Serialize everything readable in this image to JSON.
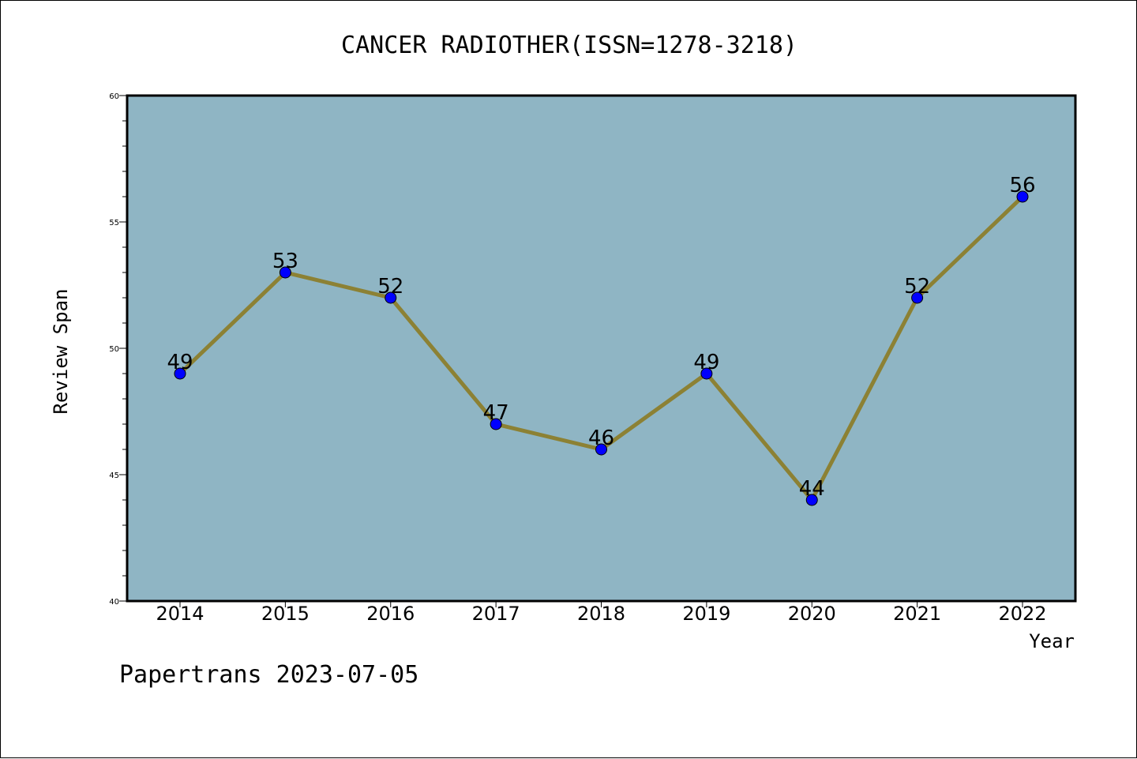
{
  "chart_data": {
    "type": "line",
    "title": "CANCER RADIOTHER(ISSN=1278-3218)",
    "xlabel": "Year",
    "ylabel": "Review Span",
    "categories": [
      "2014",
      "2015",
      "2016",
      "2017",
      "2018",
      "2019",
      "2020",
      "2021",
      "2022"
    ],
    "values": [
      49,
      53,
      52,
      47,
      46,
      49,
      44,
      52,
      56
    ],
    "data_labels": [
      "49",
      "53",
      "52",
      "47",
      "46",
      "49",
      "44",
      "52",
      "56"
    ],
    "ylim": [
      40,
      60
    ],
    "yticks": [
      40,
      45,
      50,
      55,
      60
    ],
    "ytick_labels": [
      "40",
      "45",
      "50",
      "55",
      "60"
    ],
    "grid": false,
    "colors": {
      "plot_background": "#8fb5c4",
      "line": "#8c8134",
      "marker": "#0000ff"
    }
  },
  "footer": "Papertrans 2023-07-05"
}
